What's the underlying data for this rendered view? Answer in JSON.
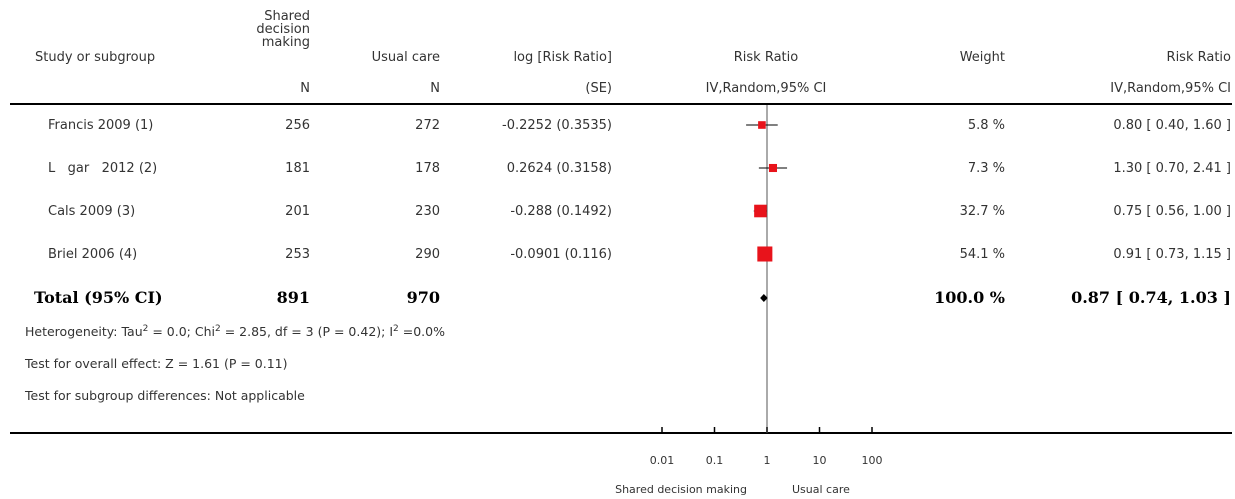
{
  "header": {
    "study": "Study or subgroup",
    "sdm_title": "Shared",
    "sdm_title2": "decision",
    "sdm_title3": "making",
    "sdm_n": "N",
    "usual_title": "Usual care",
    "usual_n": "N",
    "logrr_title": "log [Risk Ratio]",
    "logrr_sub": "(SE)",
    "rr_plot_title": "Risk Ratio",
    "rr_plot_sub": "IV,Random,95% CI",
    "weight_title": "Weight",
    "rr_title": "Risk Ratio",
    "rr_sub": "IV,Random,95% CI"
  },
  "rows": [
    {
      "study": "Francis 2009 (1)",
      "sdm": "256",
      "usual": "272",
      "logrr": "-0.2252 (0.3535)",
      "weight": "5.8 %",
      "ci": "0.80 [ 0.40, 1.60 ]"
    },
    {
      "study": "L   gar   2012 (2)",
      "sdm": "181",
      "usual": "178",
      "logrr": "0.2624 (0.3158)",
      "weight": "7.3 %",
      "ci": "1.30 [ 0.70, 2.41 ]"
    },
    {
      "study": "Cals 2009 (3)",
      "sdm": "201",
      "usual": "230",
      "logrr": "-0.288 (0.1492)",
      "weight": "32.7 %",
      "ci": "0.75 [ 0.56, 1.00 ]"
    },
    {
      "study": "Briel 2006 (4)",
      "sdm": "253",
      "usual": "290",
      "logrr": "-0.0901 (0.116)",
      "weight": "54.1 %",
      "ci": "0.91 [ 0.73, 1.15 ]"
    }
  ],
  "total": {
    "label": "Total (95% CI)",
    "sdm": "891",
    "usual": "970",
    "weight": "100.0 %",
    "ci": "0.87 [ 0.74, 1.03 ]"
  },
  "notes": {
    "het_pre": "Heterogeneity: Tau",
    "het_sup1": "2",
    "het_mid": " = 0.0; Chi",
    "het_sup2": "2",
    "het_post": " = 2.85, df = 3 (P = 0.42); I",
    "het_sup3": "2",
    "het_end": " =0.0%",
    "overall": "Test for overall effect: Z = 1.61 (P = 0.11)",
    "subgroup": "Test for subgroup differences: Not applicable"
  },
  "axis": {
    "favours_left": "Shared decision making",
    "favours_right": "Usual care"
  },
  "colors": {
    "marker": "#e8131b",
    "diamond": "#000000"
  },
  "chart_data": {
    "type": "scatter",
    "scale": "log",
    "xlim": [
      0.01,
      100
    ],
    "ticks": [
      {
        "value": 0.01,
        "label": "0.01"
      },
      {
        "value": 0.1,
        "label": "0.1"
      },
      {
        "value": 1,
        "label": "1"
      },
      {
        "value": 10,
        "label": "10"
      },
      {
        "value": 100,
        "label": "100"
      }
    ],
    "series": [
      {
        "name": "Francis 2009 (1)",
        "rr": 0.8,
        "lo": 0.4,
        "hi": 1.6,
        "weight": 5.8
      },
      {
        "name": "L   gar   2012 (2)",
        "rr": 1.3,
        "lo": 0.7,
        "hi": 2.41,
        "weight": 7.3
      },
      {
        "name": "Cals 2009 (3)",
        "rr": 0.75,
        "lo": 0.56,
        "hi": 1.0,
        "weight": 32.7
      },
      {
        "name": "Briel 2006 (4)",
        "rr": 0.91,
        "lo": 0.73,
        "hi": 1.15,
        "weight": 54.1
      }
    ],
    "pooled": {
      "rr": 0.87,
      "lo": 0.74,
      "hi": 1.03
    }
  }
}
